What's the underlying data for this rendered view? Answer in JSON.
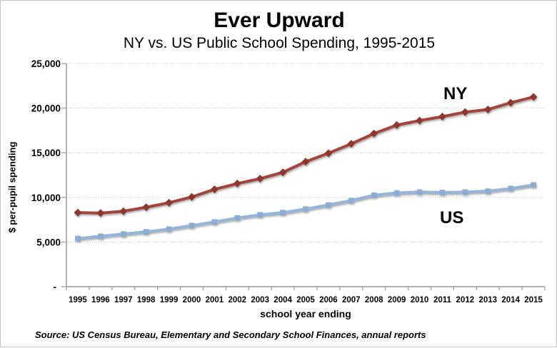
{
  "window": {
    "background": "#ffffff",
    "border_color": "#c4c4c4"
  },
  "chart_data": {
    "type": "line",
    "title": "Ever Upward",
    "subtitle": "NY vs. US Public School Spending, 1995-2015",
    "xlabel": "school year ending",
    "ylabel": "$ per-pupil spending",
    "categories": [
      "1995",
      "1996",
      "1997",
      "1998",
      "1999",
      "2000",
      "2001",
      "2002",
      "2003",
      "2004",
      "2005",
      "2006",
      "2007",
      "2008",
      "2009",
      "2010",
      "2011",
      "2012",
      "2013",
      "2014",
      "2015"
    ],
    "series": [
      {
        "name": "NY",
        "color": "#A4453B",
        "marker_color": "#8E372E",
        "marker": "diamond",
        "values": [
          8300,
          8250,
          8450,
          8900,
          9400,
          10050,
          10900,
          11550,
          12100,
          12800,
          14000,
          14950,
          16000,
          17150,
          18100,
          18600,
          19050,
          19550,
          19850,
          20600,
          21250
        ]
      },
      {
        "name": "US",
        "color": "#96B5DC",
        "marker_color": "#8CADD3",
        "marker": "square",
        "values": [
          5400,
          5650,
          5900,
          6150,
          6450,
          6850,
          7250,
          7700,
          8050,
          8300,
          8700,
          9150,
          9650,
          10250,
          10500,
          10600,
          10550,
          10600,
          10700,
          11000,
          11400
        ]
      }
    ],
    "ylim": [
      0,
      25000
    ],
    "ytick_step": 5000,
    "ytick_labels": [
      "-",
      "5,000",
      "10,000",
      "15,000",
      "20,000",
      "25,000"
    ],
    "grid": "horizontal-dotted",
    "legend": "inline-series-labels",
    "axis_color": "#9a9a9a",
    "gridline_color": "#c6c6c6"
  },
  "source": {
    "text": "Source: US Census Bureau, Elementary and Secondary School Finances, annual reports"
  }
}
